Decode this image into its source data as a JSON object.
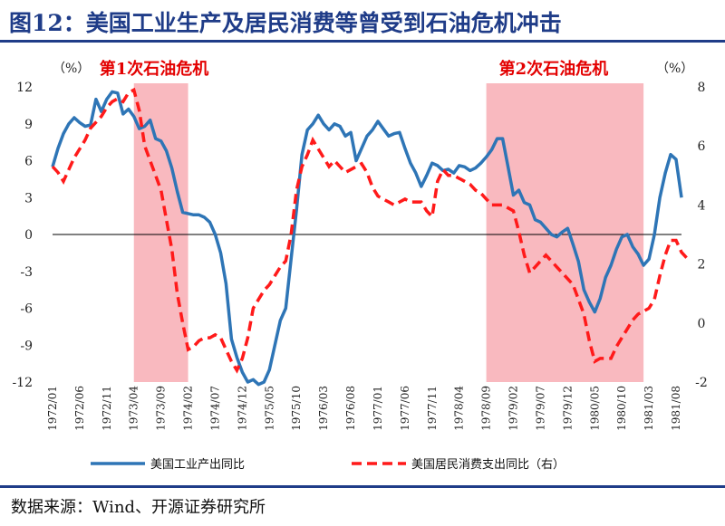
{
  "title": "图12：美国工业生产及居民消费等曾受到石油危机冲击",
  "source": "数据来源：Wind、开源证券研究所",
  "chart_data": {
    "type": "line",
    "title": "图12：美国工业生产及居民消费等曾受到石油危机冲击",
    "left_unit": "（%）",
    "right_unit": "（%）",
    "y_left": {
      "min": -12,
      "max": 12,
      "ticks": [
        "12",
        "9",
        "6",
        "3",
        "0",
        "-3",
        "-6",
        "-9",
        "-12"
      ]
    },
    "y_right": {
      "min": -2,
      "max": 8,
      "ticks": [
        "8",
        "6",
        "4",
        "2",
        "0",
        "-2"
      ]
    },
    "x_labels": [
      "1972/01",
      "1972/06",
      "1972/11",
      "1973/04",
      "1973/09",
      "1974/02",
      "1974/07",
      "1974/12",
      "1975/05",
      "1975/10",
      "1976/03",
      "1976/08",
      "1977/01",
      "1977/06",
      "1977/11",
      "1978/04",
      "1978/09",
      "1979/02",
      "1979/07",
      "1979/12",
      "1980/05",
      "1980/10",
      "1981/03",
      "1981/08"
    ],
    "shaded": [
      {
        "label": "第1次石油危机",
        "start": 15,
        "end": 25,
        "color": "#f9b9bf"
      },
      {
        "label": "第2次石油危机",
        "start": 80,
        "end": 109,
        "color": "#f9b9bf"
      }
    ],
    "series": [
      {
        "name": "美国工业产出同比",
        "axis": "left",
        "color": "#2e75b6",
        "style": "solid",
        "values": [
          5.5,
          7.0,
          8.2,
          9.0,
          9.5,
          9.1,
          8.8,
          8.9,
          11.0,
          10.0,
          11.0,
          11.6,
          11.5,
          9.8,
          10.2,
          9.6,
          8.6,
          8.8,
          9.3,
          7.8,
          7.6,
          6.8,
          5.4,
          3.5,
          1.8,
          1.7,
          1.6,
          1.6,
          1.4,
          1.0,
          0.0,
          -1.5,
          -4.0,
          -8.5,
          -10.0,
          -11.2,
          -12.0,
          -11.8,
          -12.2,
          -12.0,
          -11.0,
          -9.0,
          -7.0,
          -6.0,
          -2.0,
          2.0,
          6.5,
          8.5,
          9.0,
          9.7,
          9.0,
          8.5,
          9.0,
          8.8,
          8.0,
          8.3,
          6.0,
          7.0,
          8.0,
          8.5,
          9.2,
          8.6,
          8.0,
          8.2,
          8.3,
          7.0,
          5.8,
          5.0,
          3.9,
          4.8,
          5.8,
          5.6,
          5.2,
          5.3,
          5.0,
          5.6,
          5.5,
          5.2,
          5.4,
          5.8,
          6.3,
          6.9,
          7.8,
          7.8,
          5.5,
          3.2,
          3.6,
          2.6,
          2.4,
          1.2,
          1.0,
          0.5,
          0.0,
          -0.2,
          0.2,
          0.5,
          -0.8,
          -2.2,
          -4.5,
          -5.5,
          -6.3,
          -5.2,
          -3.5,
          -2.5,
          -1.2,
          -0.2,
          0.0,
          -1.0,
          -1.6,
          -2.5,
          -2.0,
          0.0,
          3.0,
          5.0,
          6.5,
          6.1,
          3.0
        ]
      },
      {
        "name": "美国居民消费支出同比（右）",
        "axis": "right",
        "color": "#ff1a1a",
        "style": "dashed",
        "values": [
          5.3,
          5.1,
          4.8,
          5.2,
          5.6,
          5.9,
          6.2,
          6.6,
          6.8,
          7.0,
          7.3,
          7.5,
          7.6,
          7.5,
          7.8,
          7.9,
          7.2,
          6.0,
          5.5,
          5.0,
          4.5,
          3.5,
          2.5,
          1.0,
          0.0,
          -0.9,
          -0.8,
          -0.6,
          -0.5,
          -0.5,
          -0.4,
          -0.5,
          -0.9,
          -1.3,
          -1.6,
          -1.2,
          -0.5,
          0.5,
          0.8,
          1.1,
          1.3,
          1.6,
          1.9,
          2.1,
          3.0,
          4.5,
          5.3,
          5.7,
          6.2,
          5.9,
          5.6,
          5.3,
          5.5,
          5.3,
          5.1,
          5.2,
          5.3,
          5.4,
          5.1,
          4.6,
          4.3,
          4.2,
          4.1,
          4.0,
          4.1,
          4.2,
          4.1,
          4.1,
          4.1,
          3.8,
          3.6,
          4.8,
          5.2,
          5.0,
          5.0,
          4.9,
          4.8,
          4.7,
          4.5,
          4.4,
          4.2,
          4.0,
          4.0,
          4.0,
          3.9,
          3.8,
          3.1,
          2.3,
          1.7,
          1.9,
          2.1,
          2.3,
          2.1,
          1.9,
          1.7,
          1.5,
          1.3,
          0.8,
          0.3,
          -0.6,
          -1.3,
          -1.2,
          -1.2,
          -1.2,
          -0.8,
          -0.5,
          -0.2,
          0.1,
          0.3,
          0.4,
          0.5,
          0.8,
          1.6,
          2.3,
          2.8,
          2.8,
          2.4,
          2.2
        ]
      }
    ]
  }
}
